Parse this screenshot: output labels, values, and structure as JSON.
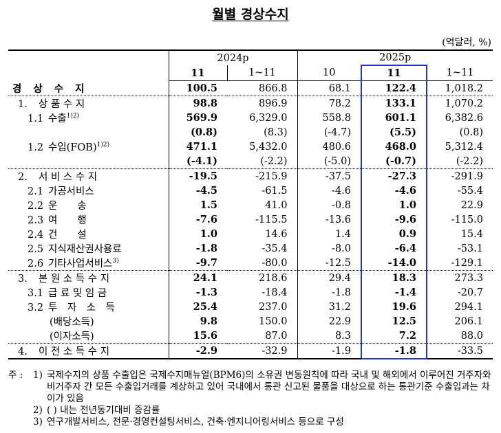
{
  "header": {
    "title": "월별 경상수지",
    "unit": "(억달러, %)"
  },
  "table": {
    "groups": [
      "2024p",
      "2025p"
    ],
    "columns": [
      "11",
      "1~11",
      "10",
      "11",
      "1~11"
    ],
    "rows": [
      {
        "label": "경 상 수 지",
        "cells": [
          "100.5",
          "866.8",
          "68.1",
          "122.4",
          "1,018.2"
        ]
      },
      {
        "code": "1.",
        "label": "상 품 수 지",
        "cells": [
          "98.8",
          "896.9",
          "78.2",
          "133.1",
          "1,070.2"
        ]
      },
      {
        "code": "1.1",
        "label": "수출",
        "sup": "1)2)",
        "cells": [
          "569.9",
          "6,329.0",
          "558.8",
          "601.1",
          "6,382.6"
        ]
      },
      {
        "cells": [
          "(0.8)",
          "(8.3)",
          "(-4.7)",
          "(5.5)",
          "(0.8)"
        ]
      },
      {
        "code": "1.2",
        "label": "수입(FOB)",
        "sup": "1)2)",
        "cells": [
          "471.1",
          "5,432.0",
          "480.6",
          "468.0",
          "5,312.4"
        ]
      },
      {
        "cells": [
          "(-4.1)",
          "(-2.2)",
          "(-5.0)",
          "(-0.7)",
          "(-2.2)"
        ]
      },
      {
        "code": "2.",
        "label": "서 비 스 수 지",
        "cells": [
          "-19.5",
          "-215.9",
          "-37.5",
          "-27.3",
          "-291.9"
        ]
      },
      {
        "code": "2.1",
        "label": "가공서비스",
        "cells": [
          "-4.5",
          "-61.5",
          "-4.6",
          "-4.6",
          "-55.4"
        ]
      },
      {
        "code": "2.2",
        "label": "운　　송",
        "cells": [
          "1.5",
          "41.0",
          "-0.8",
          "1.0",
          "22.9"
        ]
      },
      {
        "code": "2.3",
        "label": "여　　행",
        "cells": [
          "-7.6",
          "-115.5",
          "-13.6",
          "-9.6",
          "-115.0"
        ]
      },
      {
        "code": "2.4",
        "label": "건　　설",
        "cells": [
          "1.0",
          "14.6",
          "1.4",
          "0.9",
          "15.4"
        ]
      },
      {
        "code": "2.5",
        "label": "지식재산권사용료",
        "cells": [
          "-1.8",
          "-35.4",
          "-8.0",
          "-6.4",
          "-53.1"
        ]
      },
      {
        "code": "2.6",
        "label": "기타사업서비스",
        "sup": "3)",
        "cells": [
          "-9.7",
          "-80.0",
          "-12.5",
          "-14.0",
          "-129.1"
        ]
      },
      {
        "code": "3.",
        "label": "본 원 소 득 수 지",
        "cells": [
          "24.1",
          "218.6",
          "29.4",
          "18.3",
          "273.3"
        ]
      },
      {
        "code": "3.1",
        "label": "급 료 및 임 금",
        "cells": [
          "-1.3",
          "-18.4",
          "-1.8",
          "-1.4",
          "-20.7"
        ]
      },
      {
        "code": "3.2",
        "label": "투　자　소　득",
        "cells": [
          "25.4",
          "237.0",
          "31.2",
          "19.6",
          "294.1"
        ]
      },
      {
        "label": "(배당소득)",
        "cells": [
          "9.8",
          "150.0",
          "22.9",
          "12.5",
          "206.1"
        ]
      },
      {
        "label": "(이자소득)",
        "cells": [
          "15.6",
          "87.0",
          "8.3",
          "7.2",
          "88.0"
        ]
      },
      {
        "code": "4.",
        "label": "이 전 소 득 수 지",
        "cells": [
          "-2.9",
          "-32.9",
          "-1.9",
          "-1.8",
          "-33.5"
        ]
      }
    ]
  },
  "notes": {
    "prefix": "주 :",
    "items": [
      {
        "marker": "1)",
        "text": "국제수지의 상품 수출입은 국제수지매뉴얼(BPM6)의 소유권 변동원칙에 따라 국내 및 해외에서 이루어진 거주자와 비거주자 간 모든 수출입거래를 계상하고 있어 국내에서 통관 신고된 물품을 대상으로 하는 통관기준 수출입과는 차이가 있음"
      },
      {
        "marker": "2)",
        "text": "( ) 내는 전년동기대비 증감률"
      },
      {
        "marker": "3)",
        "text": "연구개발서비스, 전문·경영컨설팅서비스, 건축·엔지니어링서비스 등으로 구성"
      }
    ]
  }
}
